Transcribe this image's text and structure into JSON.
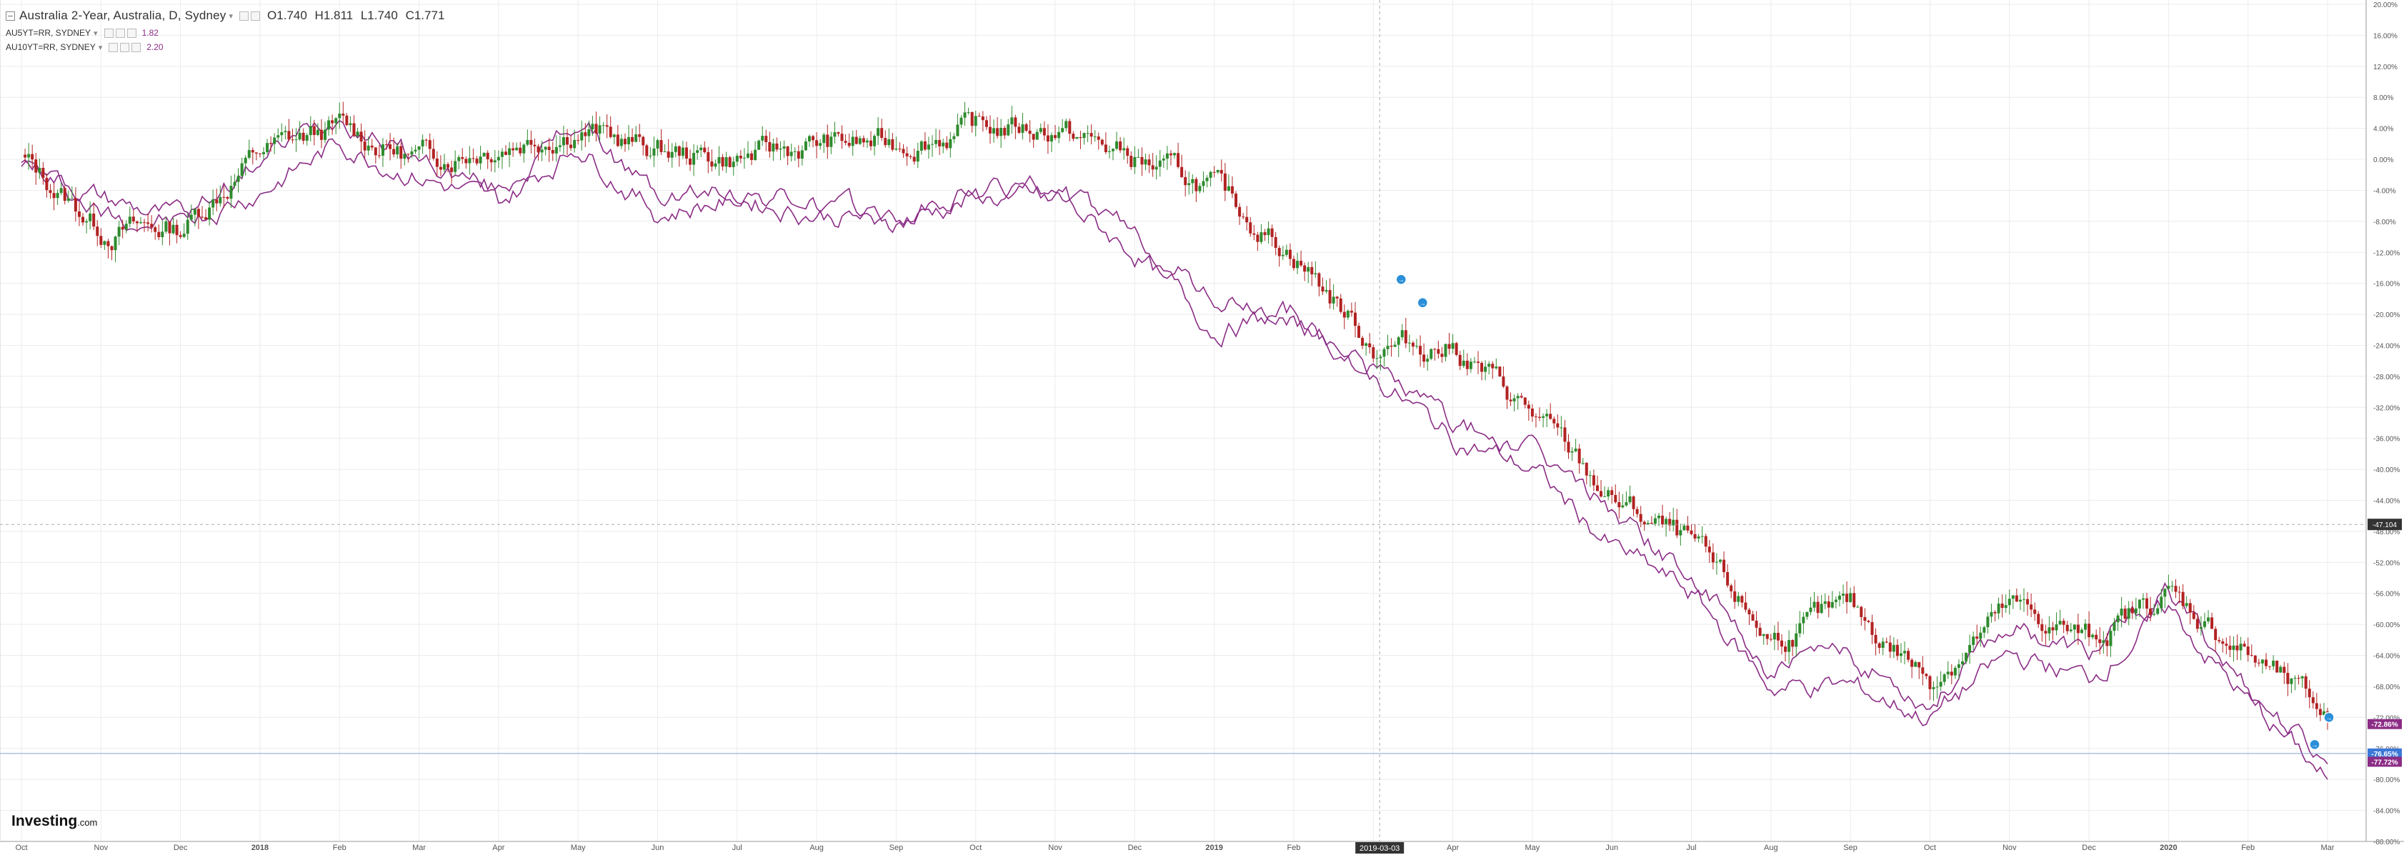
{
  "header": {
    "title": "Australia 2-Year, Australia, D, Sydney",
    "ohlc": {
      "open": "O1.740",
      "high": "H1.811",
      "low": "L1.740",
      "close": "C1.771"
    },
    "comparisons": [
      {
        "symbol": "AU5YT=RR, SYDNEY",
        "value": "1.82",
        "color": "#8b2d86"
      },
      {
        "symbol": "AU10YT=RR, SYDNEY",
        "value": "2.20",
        "color": "#8b2d86"
      }
    ]
  },
  "logo": {
    "brand": "Investing",
    "domain": ".com"
  },
  "crosshair": {
    "date_label": "2019-03-03",
    "price_label": "-47.104"
  },
  "price_tags": {
    "tag_top": "-72.86%",
    "tag_mid": "-76.65%",
    "tag_bottom": "-77.72%"
  },
  "colors": {
    "up": "#2e8b2e",
    "down": "#b22222",
    "series": "#8b2d86",
    "grid": "#ececec",
    "axis_text": "#555"
  },
  "chart_data": {
    "type": "line",
    "title": "Australia 2-Year, Australia, D, Sydney",
    "x_tick_labels": [
      "Oct",
      "Nov",
      "Dec",
      "2018",
      "Feb",
      "Mar",
      "Apr",
      "May",
      "Jun",
      "Jul",
      "Aug",
      "Sep",
      "Oct",
      "Nov",
      "Dec",
      "2019",
      "Feb",
      "Mar",
      "Apr",
      "May",
      "Jun",
      "Jul",
      "Aug",
      "Sep",
      "Oct",
      "Nov",
      "Dec",
      "2020",
      "Feb",
      "Mar"
    ],
    "y_tick_labels": [
      "20.00%",
      "16.00%",
      "12.00%",
      "8.00%",
      "4.00%",
      "0.00%",
      "-4.00%",
      "-8.00%",
      "-12.00%",
      "-16.00%",
      "-20.00%",
      "-24.00%",
      "-28.00%",
      "-32.00%",
      "-36.00%",
      "-40.00%",
      "-44.00%",
      "-48.00%",
      "-52.00%",
      "-56.00%",
      "-60.00%",
      "-64.00%",
      "-68.00%",
      "-72.00%",
      "-76.00%",
      "-80.00%",
      "-84.00%",
      "-88.00%"
    ],
    "ylim": [
      -88,
      20
    ],
    "x": [
      "2017-10-01",
      "2017-11-01",
      "2017-12-01",
      "2018-01-01",
      "2018-02-01",
      "2018-03-01",
      "2018-04-01",
      "2018-05-01",
      "2018-06-01",
      "2018-07-01",
      "2018-08-01",
      "2018-09-01",
      "2018-10-01",
      "2018-11-01",
      "2018-12-01",
      "2019-01-01",
      "2019-02-01",
      "2019-03-01",
      "2019-04-01",
      "2019-05-01",
      "2019-06-01",
      "2019-07-01",
      "2019-08-01",
      "2019-09-01",
      "2019-10-01",
      "2019-11-01",
      "2019-12-01",
      "2020-01-01",
      "2020-02-01",
      "2020-03-01"
    ],
    "series": [
      {
        "name": "Australia 2-Year",
        "style": "candlestick",
        "values": [
          0,
          -9,
          -9,
          1,
          4,
          0,
          2,
          4,
          1,
          0,
          2,
          2,
          4,
          4,
          0,
          -4,
          -12,
          -24,
          -24,
          -33,
          -44,
          -50,
          -62,
          -58,
          -67,
          -58,
          -62,
          -56,
          -64,
          -72
        ]
      },
      {
        "name": "AU5YT=RR, SYDNEY",
        "values": [
          0,
          -7,
          -8,
          0,
          6,
          0,
          -4,
          5,
          -5,
          -4,
          -6,
          -8,
          -4,
          -4,
          -10,
          -18,
          -21,
          -27,
          -34,
          -38,
          -45,
          -54,
          -66,
          -64,
          -70,
          -60,
          -64,
          -56,
          -68,
          -78
        ]
      },
      {
        "name": "AU10YT=RR, SYDNEY",
        "values": [
          0,
          -5,
          -8,
          -4,
          2,
          -2,
          -6,
          2,
          -7,
          -5,
          -7,
          -8,
          -5,
          -5,
          -12,
          -22,
          -20,
          -28,
          -36,
          -40,
          -50,
          -56,
          -68,
          -68,
          -72,
          -64,
          -67,
          -58,
          -70,
          -80
        ]
      }
    ],
    "grid": true
  }
}
